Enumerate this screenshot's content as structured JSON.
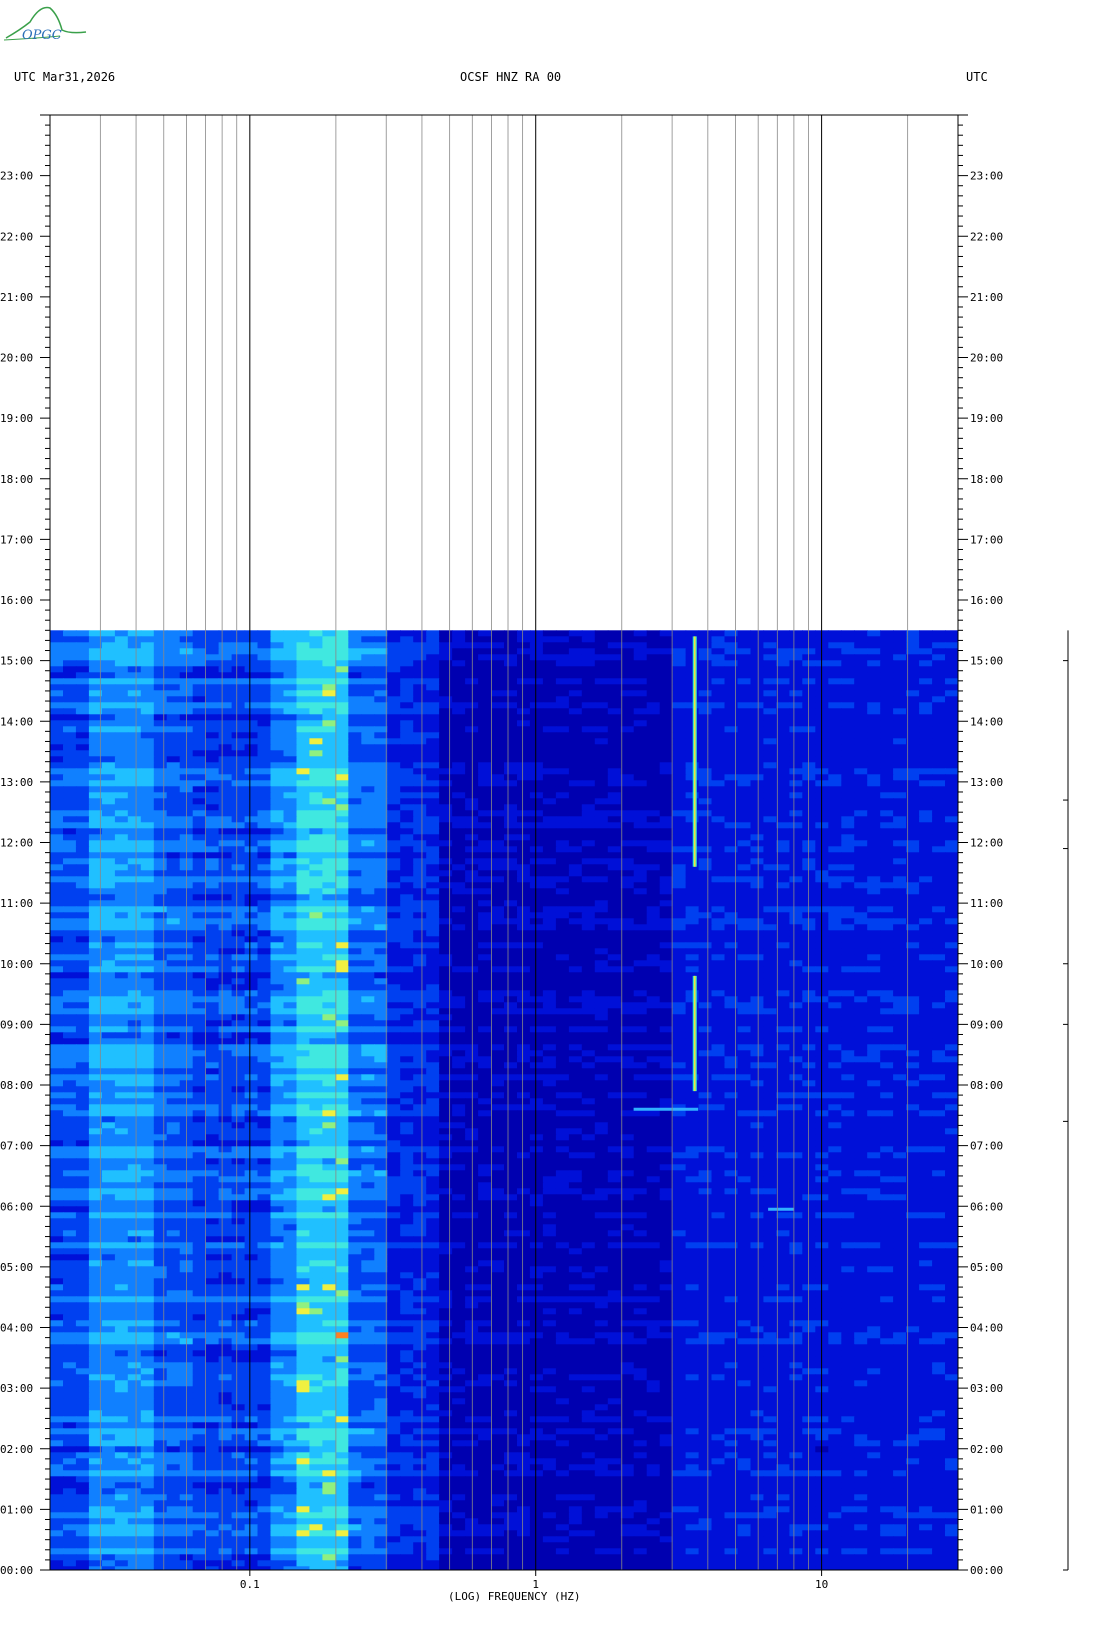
{
  "logo": {
    "text": "OPGC"
  },
  "header": {
    "left": "UTC  Mar31,2026",
    "center": "OCSF HNZ RA 00",
    "right": "UTC"
  },
  "chart_data": {
    "type": "heatmap",
    "title": "OCSF HNZ RA 00",
    "date": "Mar31,2026",
    "xlabel": "(LOG) FREQUENCY (HZ)",
    "ylabel": "UTC",
    "x_scale": "log",
    "x_range_hz": [
      0.02,
      30
    ],
    "x_tick_labels": [
      "0.1",
      "1",
      "10"
    ],
    "x_ticks_hz": [
      0.1,
      1,
      10
    ],
    "y_range_hours": [
      0,
      24
    ],
    "y_tick_labels": [
      "00:00",
      "01:00",
      "02:00",
      "03:00",
      "04:00",
      "05:00",
      "06:00",
      "07:00",
      "08:00",
      "09:00",
      "10:00",
      "11:00",
      "12:00",
      "13:00",
      "14:00",
      "15:00",
      "16:00",
      "17:00",
      "18:00",
      "19:00",
      "20:00",
      "21:00",
      "22:00",
      "23:00"
    ],
    "data_end_hour": 15.5,
    "grid": true,
    "colormap": [
      "#0000b0",
      "#0010d8",
      "#0040f0",
      "#1080ff",
      "#20c0ff",
      "#40e8e0",
      "#90f080",
      "#f0f040",
      "#ff8020"
    ],
    "features": [
      {
        "name": "microseism band",
        "freq_hz": [
          0.12,
          0.22
        ],
        "level": "high"
      },
      {
        "name": "narrow tonal line",
        "freq_hz": 3.6,
        "hours": [
          [
            7.9,
            9.8
          ],
          [
            11.6,
            15.4
          ]
        ],
        "level": "very high"
      },
      {
        "name": "short burst",
        "freq_hz": [
          2.2,
          3.7
        ],
        "hour": 7.6
      },
      {
        "name": "short burst",
        "freq_hz": [
          6.5,
          8.0
        ],
        "hour": 5.95
      }
    ]
  }
}
